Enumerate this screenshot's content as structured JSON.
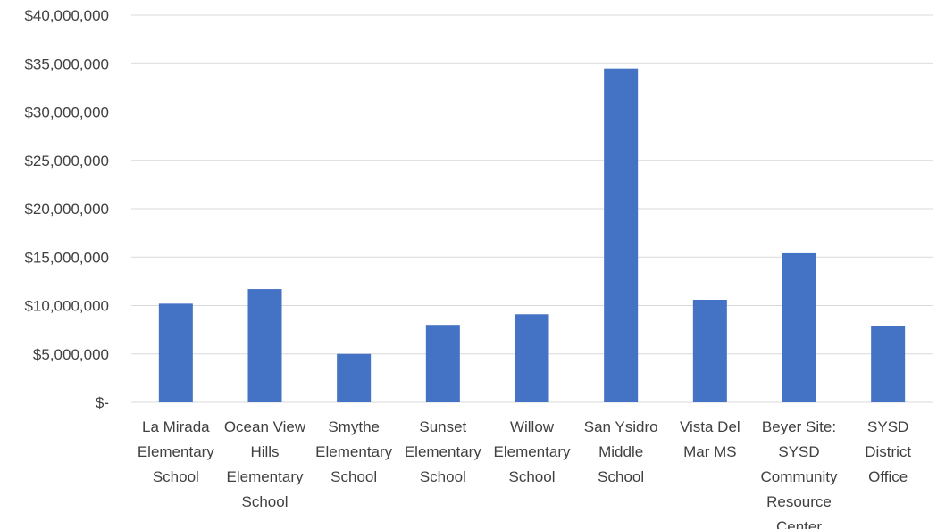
{
  "chart_data": {
    "type": "bar",
    "title": "",
    "xlabel": "",
    "ylabel": "",
    "categories": [
      [
        "La Mirada",
        "Elementary",
        "School"
      ],
      [
        "Ocean View",
        "Hills",
        "Elementary",
        "School"
      ],
      [
        "Smythe",
        "Elementary",
        "School"
      ],
      [
        "Sunset",
        "Elementary",
        "School"
      ],
      [
        "Willow",
        "Elementary",
        "School"
      ],
      [
        "San Ysidro",
        "Middle",
        "School"
      ],
      [
        "Vista Del",
        "Mar MS"
      ],
      [
        "Beyer Site:",
        "SYSD",
        "Community",
        "Resource",
        "Center"
      ],
      [
        "SYSD",
        "District",
        "Office"
      ]
    ],
    "values": [
      10200000,
      11700000,
      5000000,
      8000000,
      9100000,
      34500000,
      10600000,
      15400000,
      7900000
    ],
    "ylim": [
      0,
      40000000
    ],
    "yticks": [
      0,
      5000000,
      10000000,
      15000000,
      20000000,
      25000000,
      30000000,
      35000000,
      40000000
    ],
    "ytick_labels": [
      "$-",
      "$5,000,000",
      "$10,000,000",
      "$15,000,000",
      "$20,000,000",
      "$25,000,000",
      "$30,000,000",
      "$35,000,000",
      "$40,000,000"
    ],
    "bar_color": "#4472c4",
    "grid": true,
    "legend": "none"
  }
}
